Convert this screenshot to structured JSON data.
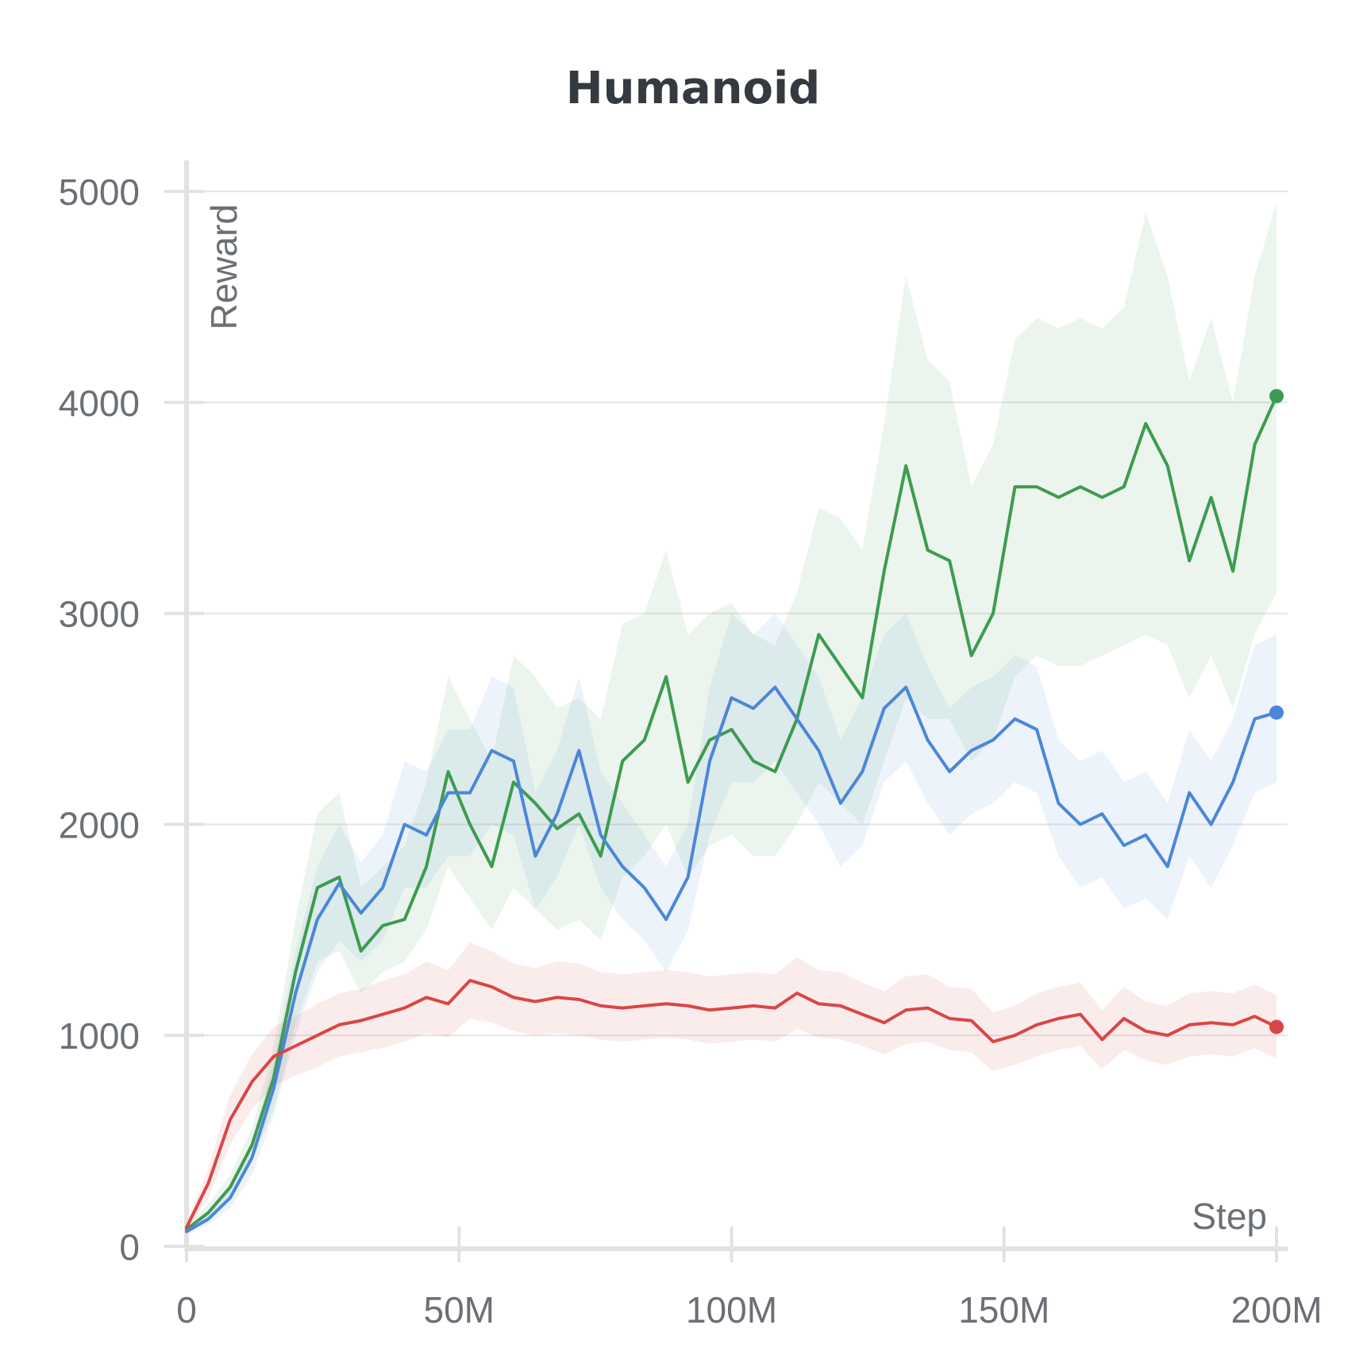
{
  "chart_data": {
    "type": "line",
    "title": "Humanoid",
    "xlabel": "Step",
    "ylabel": "Reward",
    "xlim": [
      0,
      200000000
    ],
    "ylim": [
      0,
      5200
    ],
    "x_ticks": [
      0,
      50000000,
      100000000,
      150000000,
      200000000
    ],
    "x_tick_labels": [
      "0",
      "50M",
      "100M",
      "150M",
      "200M"
    ],
    "y_ticks": [
      0,
      1000,
      2000,
      3000,
      4000,
      5000
    ],
    "y_tick_labels": [
      "0",
      "1000",
      "2000",
      "3000",
      "4000",
      "5000"
    ],
    "grid": true,
    "legend": "none",
    "x": [
      0,
      4000000,
      8000000,
      12000000,
      16000000,
      20000000,
      24000000,
      28000000,
      32000000,
      36000000,
      40000000,
      44000000,
      48000000,
      52000000,
      56000000,
      60000000,
      64000000,
      68000000,
      72000000,
      76000000,
      80000000,
      84000000,
      88000000,
      92000000,
      96000000,
      100000000,
      104000000,
      108000000,
      112000000,
      116000000,
      120000000,
      124000000,
      128000000,
      132000000,
      136000000,
      140000000,
      144000000,
      148000000,
      152000000,
      156000000,
      160000000,
      164000000,
      168000000,
      172000000,
      176000000,
      180000000,
      184000000,
      188000000,
      192000000,
      196000000,
      200000000
    ],
    "series": [
      {
        "color": "#3d9b52",
        "values": [
          80,
          160,
          280,
          480,
          800,
          1300,
          1700,
          1750,
          1400,
          1520,
          1550,
          1800,
          2250,
          2000,
          1800,
          2200,
          2100,
          1980,
          2050,
          1850,
          2300,
          2400,
          2700,
          2200,
          2400,
          2450,
          2300,
          2250,
          2500,
          2900,
          2750,
          2600,
          3200,
          3700,
          3300,
          3250,
          2800,
          3000,
          3600,
          3600,
          3550,
          3600,
          3550,
          3600,
          3900,
          3700,
          3250,
          3550,
          3200,
          3800,
          4030
        ],
        "low": [
          60,
          120,
          220,
          400,
          650,
          1050,
          1350,
          1400,
          1200,
          1300,
          1350,
          1500,
          1800,
          1650,
          1500,
          1700,
          1600,
          1500,
          1550,
          1450,
          1750,
          1850,
          2000,
          1750,
          1900,
          1950,
          1850,
          1850,
          2000,
          2200,
          2100,
          2000,
          2300,
          2600,
          2500,
          2500,
          2300,
          2400,
          2700,
          2800,
          2750,
          2750,
          2800,
          2850,
          2900,
          2850,
          2600,
          2800,
          2550,
          2900,
          3100
        ],
        "high": [
          100,
          200,
          340,
          560,
          950,
          1550,
          2050,
          2150,
          1700,
          1800,
          1900,
          2200,
          2700,
          2500,
          2300,
          2800,
          2700,
          2550,
          2600,
          2500,
          2950,
          3000,
          3300,
          2900,
          3000,
          3050,
          2900,
          2850,
          3100,
          3500,
          3450,
          3300,
          3900,
          4600,
          4200,
          4100,
          3600,
          3800,
          4300,
          4400,
          4350,
          4400,
          4350,
          4450,
          4900,
          4600,
          4100,
          4400,
          4000,
          4600,
          4950
        ]
      },
      {
        "color": "#4c86d8",
        "values": [
          70,
          130,
          230,
          420,
          750,
          1200,
          1550,
          1720,
          1580,
          1700,
          2000,
          1950,
          2150,
          2150,
          2350,
          2300,
          1850,
          2050,
          2350,
          1950,
          1800,
          1700,
          1550,
          1750,
          2300,
          2600,
          2550,
          2650,
          2500,
          2350,
          2100,
          2250,
          2550,
          2650,
          2400,
          2250,
          2350,
          2400,
          2500,
          2450,
          2100,
          2000,
          2050,
          1900,
          1950,
          1800,
          2150,
          2000,
          2200,
          2500,
          2530
        ],
        "low": [
          55,
          100,
          180,
          340,
          620,
          1000,
          1300,
          1450,
          1350,
          1450,
          1700,
          1700,
          1850,
          1850,
          2000,
          1950,
          1600,
          1750,
          2000,
          1700,
          1550,
          1450,
          1300,
          1500,
          1950,
          2200,
          2200,
          2300,
          2150,
          2000,
          1800,
          1900,
          2200,
          2300,
          2100,
          1950,
          2050,
          2100,
          2200,
          2150,
          1850,
          1700,
          1750,
          1600,
          1650,
          1550,
          1850,
          1700,
          1900,
          2150,
          2200
        ],
        "high": [
          85,
          160,
          280,
          500,
          880,
          1400,
          1800,
          2000,
          1820,
          1950,
          2300,
          2250,
          2450,
          2450,
          2700,
          2650,
          2150,
          2350,
          2700,
          2250,
          2100,
          1950,
          1800,
          2000,
          2650,
          3000,
          2900,
          3000,
          2850,
          2700,
          2400,
          2600,
          2900,
          3000,
          2750,
          2550,
          2650,
          2700,
          2800,
          2750,
          2400,
          2300,
          2350,
          2200,
          2250,
          2100,
          2450,
          2300,
          2500,
          2850,
          2900
        ]
      },
      {
        "color": "#d94646",
        "values": [
          90,
          300,
          600,
          780,
          900,
          950,
          1000,
          1050,
          1070,
          1100,
          1130,
          1180,
          1150,
          1260,
          1230,
          1180,
          1160,
          1180,
          1170,
          1140,
          1130,
          1140,
          1150,
          1140,
          1120,
          1130,
          1140,
          1130,
          1200,
          1150,
          1140,
          1100,
          1060,
          1120,
          1130,
          1080,
          1070,
          970,
          1000,
          1050,
          1080,
          1100,
          980,
          1080,
          1020,
          1000,
          1050,
          1060,
          1050,
          1090,
          1040
        ],
        "low": [
          70,
          230,
          480,
          650,
          760,
          810,
          850,
          900,
          920,
          940,
          970,
          1010,
          990,
          1080,
          1060,
          1020,
          1000,
          1010,
          1000,
          980,
          970,
          980,
          990,
          980,
          960,
          970,
          980,
          970,
          1030,
          990,
          980,
          950,
          910,
          960,
          970,
          930,
          920,
          830,
          860,
          900,
          930,
          950,
          840,
          930,
          880,
          860,
          900,
          910,
          900,
          940,
          890
        ],
        "high": [
          110,
          370,
          720,
          910,
          1040,
          1090,
          1150,
          1200,
          1220,
          1260,
          1290,
          1350,
          1310,
          1440,
          1400,
          1340,
          1320,
          1350,
          1340,
          1300,
          1290,
          1300,
          1310,
          1300,
          1280,
          1290,
          1300,
          1290,
          1370,
          1310,
          1300,
          1250,
          1210,
          1280,
          1290,
          1230,
          1220,
          1110,
          1140,
          1200,
          1230,
          1250,
          1120,
          1230,
          1160,
          1140,
          1200,
          1210,
          1200,
          1240,
          1190
        ]
      }
    ]
  }
}
